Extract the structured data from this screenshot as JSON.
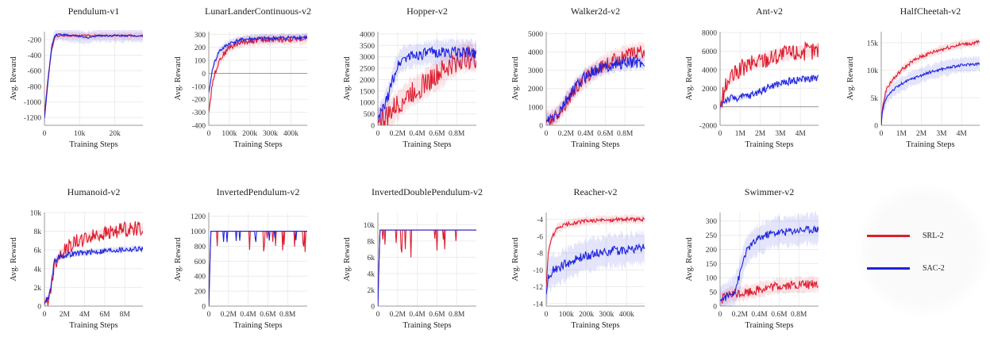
{
  "colors": {
    "SRL-2": "#dd1c2e",
    "SAC-2": "#1d22dd"
  },
  "legend": {
    "items": [
      {
        "label": "SRL-2",
        "color": "#dd1c2e"
      },
      {
        "label": "SAC-2",
        "color": "#1d22dd"
      }
    ]
  },
  "chart_data": [
    {
      "type": "line",
      "title": "Pendulum-v1",
      "xlabel": "Training Steps",
      "ylabel": "Avg. Reward",
      "xlim": [
        0,
        28000
      ],
      "ylim": [
        -1300,
        -100
      ],
      "xticks": [
        0,
        10000,
        20000
      ],
      "xticklabels": [
        "0",
        "10k",
        "20k"
      ],
      "yticks": [
        -1200,
        -1000,
        -800,
        -600,
        -400,
        -200
      ],
      "yticklabels": [
        "-1200",
        "-1000",
        "-800",
        "-600",
        "-400",
        "-200"
      ],
      "series": [
        {
          "name": "SRL-2",
          "x": [
            0,
            1000,
            2000,
            3000,
            5000,
            10000,
            15000,
            20000,
            28000
          ],
          "y": [
            -1150,
            -700,
            -350,
            -160,
            -150,
            -150,
            -150,
            -150,
            -150
          ],
          "band": 40,
          "noise": 0.01
        },
        {
          "name": "SAC-2",
          "x": [
            0,
            1000,
            2000,
            3000,
            4000,
            6000,
            10000,
            12000,
            15000,
            20000,
            28000
          ],
          "y": [
            -1210,
            -750,
            -300,
            -140,
            -130,
            -140,
            -160,
            -180,
            -150,
            -150,
            -150
          ],
          "band": 80,
          "noise": 0.01
        }
      ]
    },
    {
      "type": "line",
      "title": "LunarLanderContinuous-v2",
      "xlabel": "Training Steps",
      "ylabel": "Avg. Reward",
      "xlim": [
        0,
        480000
      ],
      "ylim": [
        -400,
        320
      ],
      "xticks": [
        0,
        100000,
        200000,
        300000,
        400000
      ],
      "xticklabels": [
        "0",
        "100k",
        "200k",
        "300k",
        "400k"
      ],
      "yticks": [
        -400,
        -300,
        -200,
        -100,
        0,
        100,
        200,
        300
      ],
      "yticklabels": [
        "-400",
        "-300",
        "-200",
        "-100",
        "0",
        "100",
        "200",
        "300"
      ],
      "zeroline": 0,
      "series": [
        {
          "name": "SRL-2",
          "x": [
            0,
            20000,
            50000,
            100000,
            150000,
            200000,
            300000,
            400000,
            480000
          ],
          "y": [
            -300,
            -50,
            100,
            200,
            235,
            250,
            260,
            262,
            265
          ],
          "band": 40,
          "noise": 0.03
        },
        {
          "name": "SAC-2",
          "x": [
            0,
            20000,
            50000,
            100000,
            150000,
            200000,
            300000,
            400000,
            480000
          ],
          "y": [
            -150,
            50,
            170,
            230,
            255,
            265,
            270,
            275,
            278
          ],
          "band": 30,
          "noise": 0.02
        }
      ]
    },
    {
      "type": "line",
      "title": "Hopper-v2",
      "xlabel": "Training Steps",
      "ylabel": "Avg. Reward",
      "xlim": [
        0,
        1000000
      ],
      "ylim": [
        0,
        4100
      ],
      "xticks": [
        0,
        200000,
        400000,
        600000,
        800000
      ],
      "xticklabels": [
        "0",
        "0.2M",
        "0.4M",
        "0.6M",
        "0.8M"
      ],
      "yticks": [
        0,
        500,
        1000,
        1500,
        2000,
        2500,
        3000,
        3500,
        4000
      ],
      "yticklabels": [
        "0",
        "500",
        "1000",
        "1500",
        "2000",
        "2500",
        "3000",
        "3500",
        "4000"
      ],
      "series": [
        {
          "name": "SRL-2",
          "x": [
            0,
            100000,
            200000,
            300000,
            400000,
            500000,
            600000,
            700000,
            800000,
            900000,
            1000000
          ],
          "y": [
            200,
            400,
            900,
            1300,
            1600,
            1900,
            2200,
            2500,
            2800,
            3000,
            2900
          ],
          "band": 600,
          "noise": 0.12
        },
        {
          "name": "SAC-2",
          "x": [
            0,
            50000,
            100000,
            150000,
            200000,
            250000,
            300000,
            400000,
            500000,
            600000,
            700000,
            800000,
            900000,
            1000000
          ],
          "y": [
            300,
            700,
            1200,
            2000,
            2600,
            2900,
            3000,
            3100,
            3150,
            3200,
            3200,
            3200,
            3200,
            3150
          ],
          "band": 500,
          "noise": 0.06
        }
      ]
    },
    {
      "type": "line",
      "title": "Walker2d-v2",
      "xlabel": "Training Steps",
      "ylabel": "Avg. Reward",
      "xlim": [
        0,
        1000000
      ],
      "ylim": [
        0,
        5100
      ],
      "xticks": [
        0,
        200000,
        400000,
        600000,
        800000
      ],
      "xticklabels": [
        "0",
        "0.2M",
        "0.4M",
        "0.6M",
        "0.8M"
      ],
      "yticks": [
        0,
        1000,
        2000,
        3000,
        4000,
        5000
      ],
      "yticklabels": [
        "0",
        "1000",
        "2000",
        "3000",
        "4000",
        "5000"
      ],
      "series": [
        {
          "name": "SRL-2",
          "x": [
            0,
            100000,
            200000,
            300000,
            400000,
            500000,
            600000,
            700000,
            800000,
            900000,
            1000000
          ],
          "y": [
            200,
            500,
            1200,
            2000,
            2600,
            3000,
            3300,
            3600,
            3800,
            3950,
            4000
          ],
          "band": 500,
          "noise": 0.07
        },
        {
          "name": "SAC-2",
          "x": [
            0,
            100000,
            200000,
            300000,
            400000,
            500000,
            600000,
            700000,
            800000,
            900000,
            1000000
          ],
          "y": [
            200,
            500,
            1300,
            2100,
            2700,
            3000,
            3200,
            3300,
            3400,
            3450,
            3400
          ],
          "band": 400,
          "noise": 0.06
        }
      ]
    },
    {
      "type": "line",
      "title": "Ant-v2",
      "xlabel": "Training Steps",
      "ylabel": "Avg. Reward",
      "xlim": [
        0,
        4900000
      ],
      "ylim": [
        -2000,
        8100
      ],
      "xticks": [
        0,
        1000000,
        2000000,
        3000000,
        4000000
      ],
      "xticklabels": [
        "0",
        "1M",
        "2M",
        "3M",
        "4M"
      ],
      "yticks": [
        -2000,
        0,
        2000,
        4000,
        6000,
        8000
      ],
      "yticklabels": [
        "-2000",
        "0",
        "2000",
        "4000",
        "6000",
        "8000"
      ],
      "zeroline": 0,
      "series": [
        {
          "name": "SRL-2",
          "x": [
            0,
            250000,
            500000,
            1000000,
            1500000,
            2000000,
            2500000,
            3000000,
            3500000,
            4000000,
            4500000,
            4900000
          ],
          "y": [
            0,
            2000,
            3000,
            4000,
            4600,
            5000,
            5300,
            5600,
            5800,
            5900,
            6000,
            6100
          ],
          "band": 700,
          "noise": 0.1
        },
        {
          "name": "SAC-2",
          "x": [
            0,
            250000,
            500000,
            1000000,
            1500000,
            2000000,
            2500000,
            3000000,
            3500000,
            4000000,
            4500000,
            4900000
          ],
          "y": [
            0,
            700,
            900,
            1000,
            1200,
            1700,
            2200,
            2500,
            2800,
            2950,
            3050,
            3100
          ],
          "band": 300,
          "noise": 0.04
        }
      ]
    },
    {
      "type": "line",
      "title": "HalfCheetah-v2",
      "xlabel": "Training Steps",
      "ylabel": "Avg. Reward",
      "xlim": [
        0,
        4900000
      ],
      "ylim": [
        0,
        17000
      ],
      "xticks": [
        0,
        1000000,
        2000000,
        3000000,
        4000000
      ],
      "xticklabels": [
        "0",
        "1M",
        "2M",
        "3M",
        "4M"
      ],
      "yticks": [
        0,
        5000,
        10000,
        15000
      ],
      "yticklabels": [
        "0",
        "5k",
        "10k",
        "15k"
      ],
      "series": [
        {
          "name": "SRL-2",
          "x": [
            0,
            50000,
            250000,
            500000,
            1000000,
            1500000,
            2000000,
            2500000,
            3000000,
            3500000,
            4000000,
            4500000,
            4900000
          ],
          "y": [
            0,
            3000,
            6500,
            8000,
            10000,
            11500,
            12500,
            13200,
            13800,
            14300,
            14700,
            14900,
            15100
          ],
          "band": 700,
          "noise": 0.02
        },
        {
          "name": "SAC-2",
          "x": [
            0,
            50000,
            250000,
            500000,
            1000000,
            1500000,
            2000000,
            2500000,
            3000000,
            3500000,
            4000000,
            4500000,
            4900000
          ],
          "y": [
            0,
            2500,
            5000,
            6200,
            7500,
            8400,
            9100,
            9700,
            10200,
            10600,
            10900,
            11100,
            11200
          ],
          "band": 1300,
          "noise": 0.015
        }
      ]
    },
    {
      "type": "line",
      "title": "Humanoid-v2",
      "xlabel": "Training Steps",
      "ylabel": "Avg. Reward",
      "xlim": [
        0,
        9800000
      ],
      "ylim": [
        0,
        10000
      ],
      "xticks": [
        0,
        2000000,
        4000000,
        6000000,
        8000000
      ],
      "xticklabels": [
        "0",
        "2M",
        "4M",
        "6M",
        "8M"
      ],
      "yticks": [
        0,
        2000,
        4000,
        6000,
        8000,
        10000
      ],
      "yticklabels": [
        "0",
        "2k",
        "4k",
        "6k",
        "8k",
        "10k"
      ],
      "series": [
        {
          "name": "SRL-2",
          "x": [
            0,
            500000,
            1000000,
            1500000,
            2000000,
            3000000,
            4000000,
            5000000,
            6000000,
            7000000,
            8000000,
            9000000,
            9800000
          ],
          "y": [
            300,
            1000,
            4500,
            5500,
            6000,
            6800,
            7200,
            7500,
            7800,
            8000,
            8200,
            8300,
            8350
          ],
          "band": 500,
          "noise": 0.08
        },
        {
          "name": "SAC-2",
          "x": [
            0,
            500000,
            1000000,
            1500000,
            2000000,
            3000000,
            4000000,
            5000000,
            6000000,
            7000000,
            8000000,
            9000000,
            9800000
          ],
          "y": [
            300,
            1200,
            4800,
            5300,
            5400,
            5600,
            5700,
            5800,
            5900,
            6000,
            6050,
            6100,
            6150
          ],
          "band": 300,
          "noise": 0.03
        }
      ]
    },
    {
      "type": "line",
      "title": "InvertedPendulum-v2",
      "xlabel": "Training Steps",
      "ylabel": "Avg. Reward",
      "xlim": [
        0,
        1000000
      ],
      "ylim": [
        0,
        1250
      ],
      "xticks": [
        0,
        200000,
        400000,
        600000,
        800000
      ],
      "xticklabels": [
        "0",
        "0.2M",
        "0.4M",
        "0.6M",
        "0.8M"
      ],
      "yticks": [
        0,
        200,
        400,
        600,
        800,
        1000,
        1200
      ],
      "yticklabels": [
        "0",
        "200",
        "400",
        "600",
        "800",
        "1000",
        "1200"
      ],
      "series": [
        {
          "name": "SRL-2",
          "x": [
            0,
            10000,
            20000,
            1000000
          ],
          "y": [
            0,
            500,
            1000,
            1000
          ],
          "band": 0,
          "noise": 0,
          "dips": 14,
          "dipdepth": 200
        },
        {
          "name": "SAC-2",
          "x": [
            0,
            10000,
            20000,
            1000000
          ],
          "y": [
            0,
            500,
            1000,
            1000
          ],
          "band": 0,
          "noise": 0,
          "dips": 9,
          "dipdepth": 150
        }
      ]
    },
    {
      "type": "line",
      "title": "InvertedDoublePendulum-v2",
      "xlabel": "Training Steps",
      "ylabel": "Avg. Reward",
      "xlim": [
        0,
        1000000
      ],
      "ylim": [
        0,
        11500
      ],
      "xticks": [
        0,
        200000,
        400000,
        600000,
        800000
      ],
      "xticklabels": [
        "0",
        "0.2M",
        "0.4M",
        "0.6M",
        "0.8M"
      ],
      "yticks": [
        0,
        2000,
        4000,
        6000,
        8000,
        10000
      ],
      "yticklabels": [
        "0",
        "2k",
        "4k",
        "6k",
        "8k",
        "10k"
      ],
      "series": [
        {
          "name": "SRL-2",
          "x": [
            0,
            10000,
            20000,
            1000000
          ],
          "y": [
            0,
            5000,
            9350,
            9350
          ],
          "band": 0,
          "noise": 0,
          "dips": 12,
          "dipdepth": 2500
        },
        {
          "name": "SAC-2",
          "x": [
            0,
            10000,
            20000,
            1000000
          ],
          "y": [
            0,
            5000,
            9350,
            9350
          ],
          "band": 0,
          "noise": 0,
          "dips": 0,
          "dipdepth": 0
        }
      ]
    },
    {
      "type": "line",
      "title": "Reacher-v2",
      "xlabel": "Training Steps",
      "ylabel": "Avg. Reward",
      "xlim": [
        0,
        490000
      ],
      "ylim": [
        -14.3,
        -3.2
      ],
      "xticks": [
        0,
        100000,
        200000,
        300000,
        400000
      ],
      "xticklabels": [
        "0",
        "100k",
        "200k",
        "300k",
        "400k"
      ],
      "yticks": [
        -14,
        -12,
        -10,
        -8,
        -6,
        -4
      ],
      "yticklabels": [
        "-14",
        "-12",
        "-10",
        "-8",
        "-6",
        "-4"
      ],
      "series": [
        {
          "name": "SRL-2",
          "x": [
            0,
            10000,
            30000,
            60000,
            100000,
            200000,
            300000,
            400000,
            490000
          ],
          "y": [
            -12,
            -8,
            -6,
            -5,
            -4.6,
            -4.2,
            -4.1,
            -4.0,
            -4.0
          ],
          "band": 0.5,
          "noise": 0.02
        },
        {
          "name": "SAC-2",
          "x": [
            0,
            10000,
            30000,
            60000,
            100000,
            200000,
            300000,
            400000,
            490000
          ],
          "y": [
            -13,
            -11,
            -10,
            -9.8,
            -9.3,
            -8.3,
            -7.8,
            -7.6,
            -7.3
          ],
          "band": 1.8,
          "noise": 0.05
        }
      ]
    },
    {
      "type": "line",
      "title": "Swimmer-v2",
      "xlabel": "Training Steps",
      "ylabel": "Avg. Reward",
      "xlim": [
        0,
        1000000
      ],
      "ylim": [
        0,
        330
      ],
      "xticks": [
        0,
        200000,
        400000,
        600000,
        800000
      ],
      "xticklabels": [
        "0",
        "0.2M",
        "0.4M",
        "0.6M",
        "0.8M"
      ],
      "yticks": [
        0,
        50,
        100,
        150,
        200,
        250,
        300
      ],
      "yticklabels": [
        "0",
        "50",
        "100",
        "150",
        "200",
        "250",
        "300"
      ],
      "series": [
        {
          "name": "SRL-2",
          "x": [
            0,
            100000,
            200000,
            300000,
            400000,
            600000,
            800000,
            1000000
          ],
          "y": [
            20,
            40,
            45,
            50,
            60,
            70,
            75,
            78
          ],
          "band": 25,
          "noise": 0.05
        },
        {
          "name": "SAC-2",
          "x": [
            0,
            100000,
            150000,
            200000,
            250000,
            300000,
            400000,
            500000,
            600000,
            800000,
            1000000
          ],
          "y": [
            20,
            40,
            55,
            110,
            180,
            210,
            240,
            255,
            260,
            268,
            272
          ],
          "band": 50,
          "noise": 0.04
        }
      ]
    }
  ]
}
